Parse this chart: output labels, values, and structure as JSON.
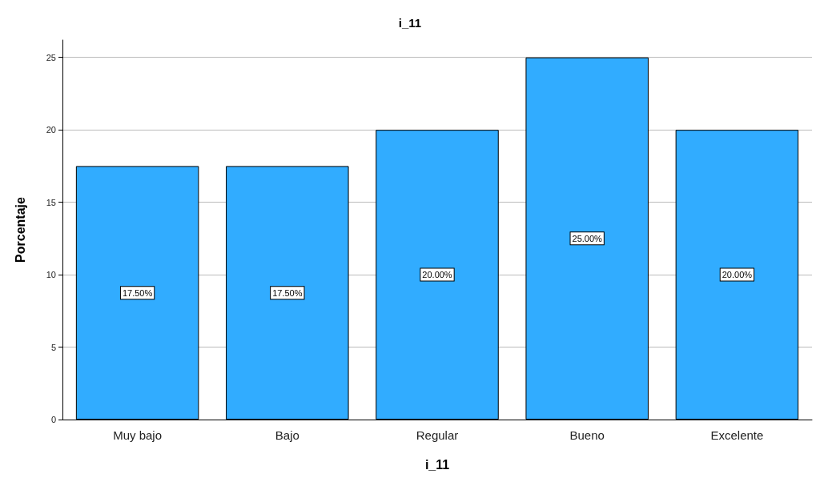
{
  "chart_data": {
    "type": "bar",
    "title": "i_11",
    "xlabel": "i_11",
    "ylabel": "Porcentaje",
    "categories": [
      "Muy bajo",
      "Bajo",
      "Regular",
      "Bueno",
      "Excelente"
    ],
    "values": [
      17.5,
      17.5,
      20,
      25,
      20
    ],
    "value_labels": [
      "17.50%",
      "17.50%",
      "20.00%",
      "25.00%",
      "20.00%"
    ],
    "color": "#31acff",
    "ylim": [
      0,
      26.2
    ],
    "yticks": [
      0,
      5,
      10,
      15,
      20,
      25
    ],
    "grid": "y"
  }
}
